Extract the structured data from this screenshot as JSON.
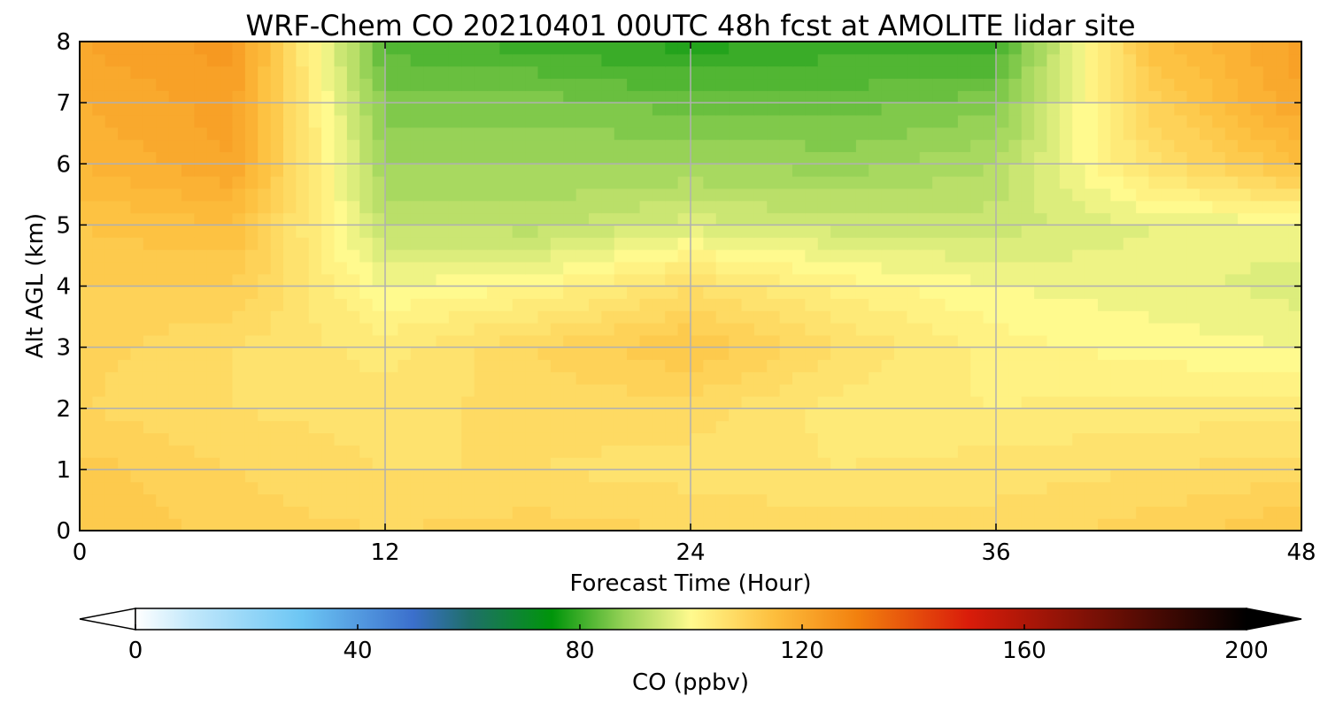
{
  "chart_data": {
    "type": "heatmap",
    "title": "WRF-Chem CO  20210401 00UTC 48h fcst at AMOLITE lidar site",
    "xlabel": "Forecast Time (Hour)",
    "ylabel": "Alt AGL (km)",
    "xlim": [
      0,
      48
    ],
    "ylim": [
      0,
      8
    ],
    "x_ticks": [
      0,
      12,
      24,
      36,
      48
    ],
    "y_ticks": [
      0,
      1,
      2,
      3,
      4,
      5,
      6,
      7,
      8
    ],
    "grid": true,
    "x": [
      0,
      6,
      12,
      18,
      24,
      30,
      36,
      42,
      48
    ],
    "y": [
      0,
      1,
      2,
      3,
      4,
      5,
      6,
      7,
      8
    ],
    "z": [
      [
        113,
        110,
        109,
        110,
        109,
        108,
        108,
        110,
        113
      ],
      [
        112,
        109,
        107,
        107,
        106,
        105,
        106,
        107,
        108
      ],
      [
        109,
        107,
        106,
        108,
        108,
        104,
        103,
        104,
        104
      ],
      [
        110,
        107,
        104,
        109,
        113,
        107,
        102,
        100,
        99
      ],
      [
        111,
        111,
        99,
        101,
        107,
        102,
        99,
        98,
        96
      ],
      [
        113,
        115,
        93,
        92,
        96,
        94,
        94,
        97,
        98
      ],
      [
        117,
        121,
        89,
        89,
        89,
        88,
        91,
        106,
        115
      ],
      [
        119,
        122,
        86,
        86,
        84,
        84,
        86,
        110,
        121
      ],
      [
        121,
        124,
        82,
        80,
        78,
        80,
        80,
        114,
        122
      ]
    ],
    "colorbar": {
      "label": "CO  (ppbv)",
      "min": 0,
      "max": 200,
      "ticks": [
        0,
        40,
        80,
        120,
        160,
        200
      ],
      "extend": "both",
      "colors": [
        "#ffffff",
        "#c2e8fb",
        "#6cc6f4",
        "#3b6fcc",
        "#1f6f6a",
        "#00950a",
        "#97d257",
        "#fffa8e",
        "#fdbe3d",
        "#f2800e",
        "#d91c0a",
        "#6f0f05",
        "#000000"
      ],
      "positions": [
        0,
        10,
        30,
        50,
        60,
        75,
        88,
        100,
        115,
        130,
        150,
        175,
        200
      ]
    }
  }
}
